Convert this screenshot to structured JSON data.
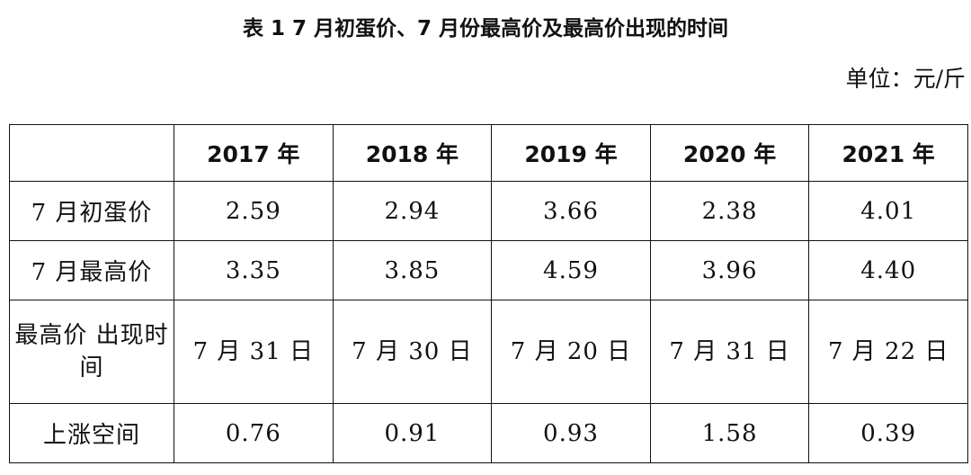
{
  "title": "表 1 7 月初蛋价、7 月份最高价及最高价出现的时间",
  "unit": "单位：元/斤",
  "table": {
    "corner": "",
    "columns": [
      "2017 年",
      "2018 年",
      "2019 年",
      "2020 年",
      "2021 年"
    ],
    "rows": [
      {
        "label": "7 月初蛋价",
        "values": [
          "2.59",
          "2.94",
          "3.66",
          "2.38",
          "4.01"
        ]
      },
      {
        "label": "7 月最高价",
        "values": [
          "3.35",
          "3.85",
          "4.59",
          "3.96",
          "4.40"
        ]
      },
      {
        "label": "最高价 出现时间",
        "values": [
          "7 月 31 日",
          "7 月 30 日",
          "7 月 20 日",
          "7 月 31 日",
          "7 月 22 日"
        ]
      },
      {
        "label": "上涨空间",
        "values": [
          "0.76",
          "0.91",
          "0.93",
          "1.58",
          "0.39"
        ]
      }
    ]
  }
}
